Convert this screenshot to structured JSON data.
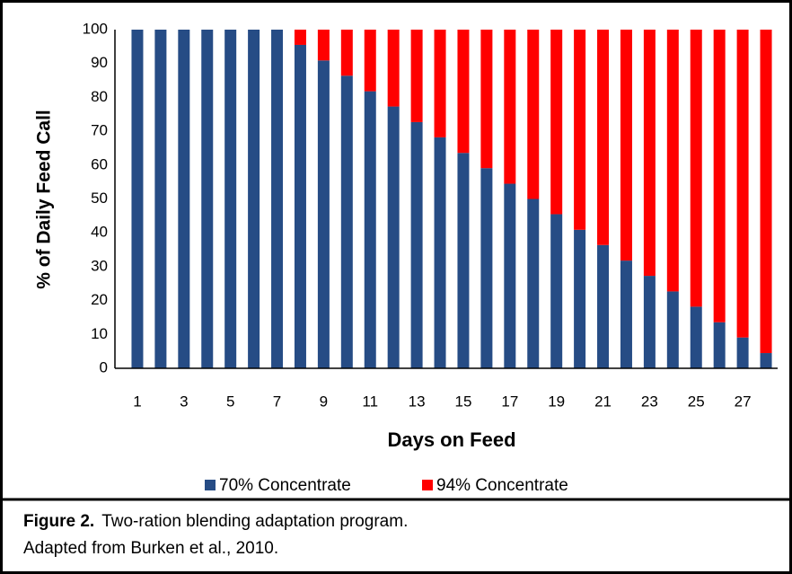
{
  "chart_data": {
    "type": "stacked_bar",
    "x_label": "Days on Feed",
    "y_label": "% of Daily Feed Call",
    "categories": [
      "1",
      null,
      "3",
      null,
      "5",
      null,
      "7",
      null,
      "9",
      null,
      "11",
      null,
      "13",
      null,
      "15",
      null,
      "17",
      null,
      "19",
      null,
      "21",
      null,
      "23",
      null,
      "25",
      null,
      "27",
      null
    ],
    "series": [
      {
        "name": "70% Concentrate",
        "color": "#264c85",
        "values": [
          100,
          100,
          100,
          100,
          100,
          100,
          100,
          95.5,
          90.9,
          86.4,
          81.8,
          77.3,
          72.7,
          68.2,
          63.6,
          59.1,
          54.5,
          50,
          45.5,
          40.9,
          36.4,
          31.8,
          27.3,
          22.7,
          18.2,
          13.6,
          9.1,
          4.5
        ]
      },
      {
        "name": "94% Concentrate",
        "color": "#ff0000",
        "values": [
          0,
          0,
          0,
          0,
          0,
          0,
          0,
          4.5,
          9.1,
          13.6,
          18.2,
          22.7,
          27.3,
          31.8,
          36.4,
          40.9,
          45.5,
          50,
          54.5,
          59.1,
          63.6,
          68.2,
          72.7,
          77.3,
          81.8,
          86.4,
          90.9,
          95.5
        ]
      }
    ],
    "ylim": [
      0,
      100
    ],
    "yticks": [
      0,
      10,
      20,
      30,
      40,
      50,
      60,
      70,
      80,
      90,
      100
    ],
    "legend": "bottom"
  },
  "caption": {
    "label": "Figure 2.",
    "text": "Two-ration blending adaptation program.",
    "source": "Adapted from Burken et al., 2010."
  }
}
